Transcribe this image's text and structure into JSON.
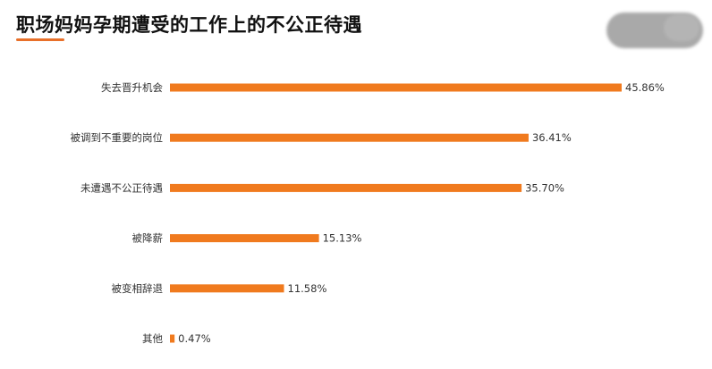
{
  "title": "职场妈妈孕期遭受的工作上的不公正待遇",
  "colors": {
    "bar": "#f07a1e",
    "accent": "#e8702a"
  },
  "chart_data": {
    "type": "bar",
    "orientation": "horizontal",
    "unit": "%",
    "categories": [
      "失去晋升机会",
      "被调到不重要的岗位",
      "未遭遇不公正待遇",
      "被降薪",
      "被变相辞退",
      "其他"
    ],
    "values": [
      45.86,
      36.41,
      35.7,
      15.13,
      11.58,
      0.47
    ],
    "value_labels": [
      "45.86%",
      "36.41%",
      "35.70%",
      "15.13%",
      "11.58%",
      "0.47%"
    ],
    "xlim": [
      0,
      45.86
    ],
    "grid": false,
    "legend": "none"
  }
}
